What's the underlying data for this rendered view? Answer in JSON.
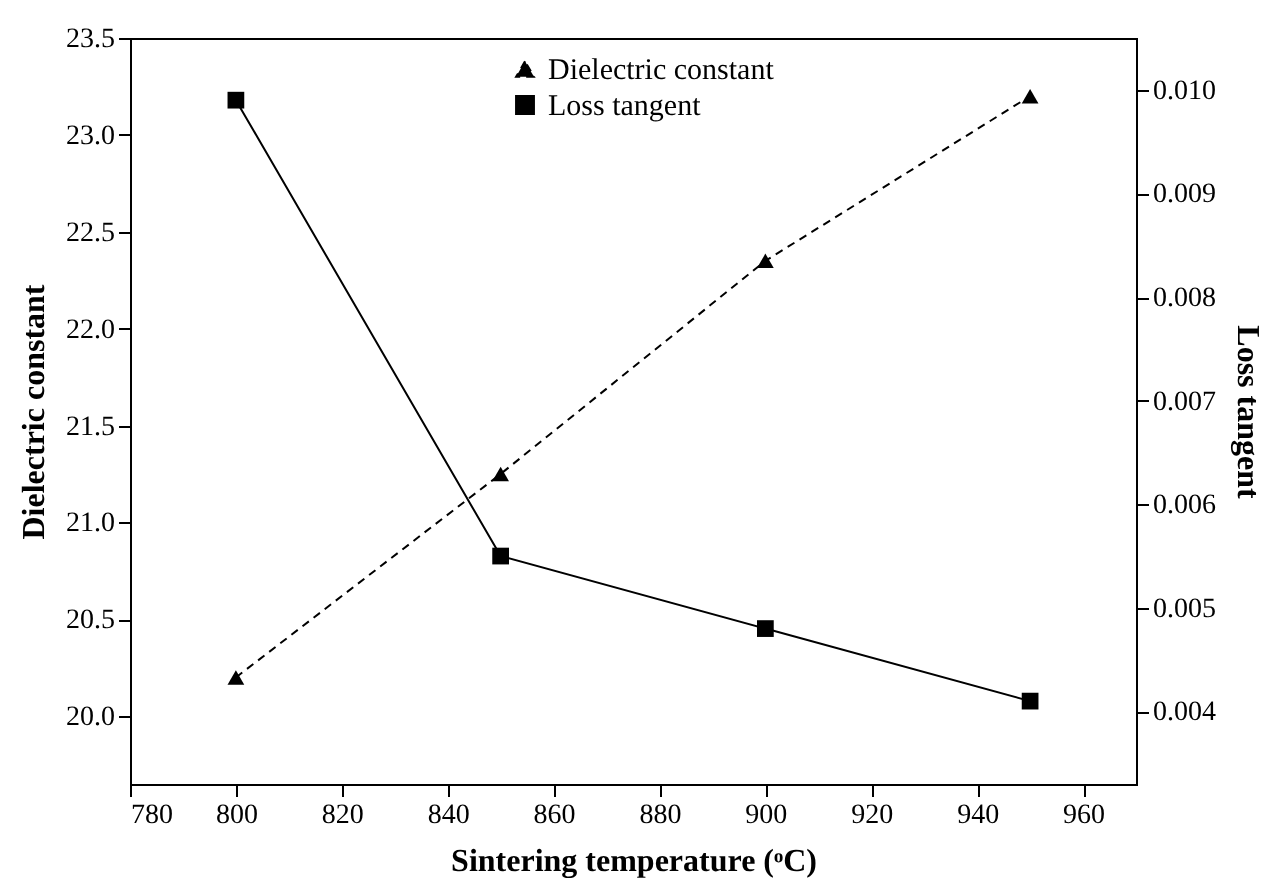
{
  "chart_data": {
    "type": "line",
    "xlabel": "Sintering temperature (ᵒC)",
    "ylabel": "Dielectric constant",
    "y2label": "Loss tangent",
    "x": [
      800,
      850,
      900,
      950
    ],
    "series": [
      {
        "name": "Dielectric constant",
        "color": "#000000",
        "values": [
          20.2,
          21.25,
          22.35,
          23.2
        ],
        "marker": "triangle",
        "line_style": "dashed"
      },
      {
        "name": "Loss tangent",
        "color": "#000000",
        "values": [
          0.0099,
          0.0055,
          0.0048,
          0.0041
        ],
        "marker": "square",
        "line_style": "solid",
        "axis": "y2"
      }
    ],
    "xlim": [
      780,
      970
    ],
    "xticks": [
      780,
      800,
      820,
      840,
      860,
      880,
      900,
      920,
      940,
      960
    ],
    "ylim": [
      19.65,
      23.5
    ],
    "yticks": [
      {
        "value": 20,
        "label": "20.0"
      },
      20.5,
      {
        "value": 21,
        "label": "21.0"
      },
      21.5,
      {
        "value": 22,
        "label": "22.0"
      },
      22.5,
      {
        "value": 23,
        "label": "23.0"
      },
      23.5
    ],
    "y2lim": [
      0.0033,
      0.0105
    ],
    "y2ticks": [
      0.004,
      0.005,
      0.006,
      0.007,
      0.008,
      0.009,
      {
        "value": 0.01,
        "label": "0.010"
      }
    ],
    "legend": "top",
    "grid": false
  }
}
